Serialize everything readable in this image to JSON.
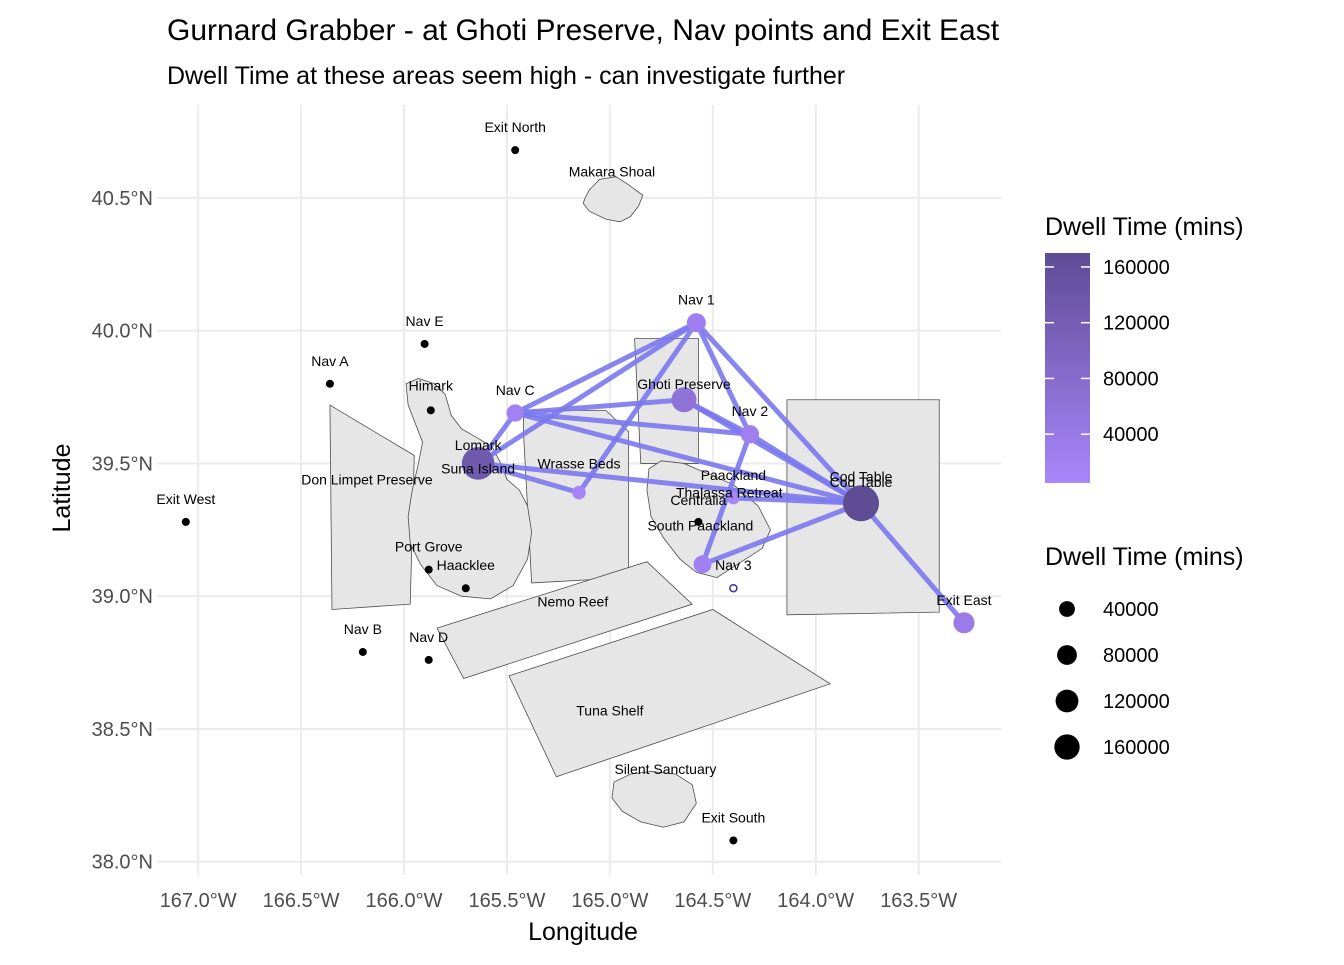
{
  "title": "Gurnard Grabber - at Ghoti Preserve, Nav points and Exit East",
  "subtitle": "Dwell Time at these areas seem high - can investigate further",
  "chart_data": {
    "type": "map",
    "xlabel": "Longitude",
    "ylabel": "Latitude",
    "xlim": [
      -167.2,
      -163.1
    ],
    "ylim": [
      37.95,
      40.85
    ],
    "x_ticks": [
      -167.0,
      -166.5,
      -166.0,
      -165.5,
      -165.0,
      -164.5,
      -164.0,
      -163.5
    ],
    "x_tick_labels": [
      "167.0°W",
      "166.5°W",
      "166.0°W",
      "165.5°W",
      "165.0°W",
      "164.5°W",
      "164.0°W",
      "163.5°W"
    ],
    "y_ticks": [
      38.0,
      38.5,
      39.0,
      39.5,
      40.0,
      40.5
    ],
    "y_tick_labels": [
      "38.0°N",
      "38.5°N",
      "39.0°N",
      "39.5°N",
      "40.0°N",
      "40.5°N"
    ],
    "grid": true,
    "regions": [
      {
        "name": "Don Limpet Preserve",
        "label": [
          -166.18,
          39.44
        ],
        "coords": [
          [
            -166.36,
            39.72
          ],
          [
            -165.95,
            39.53
          ],
          [
            -165.97,
            38.97
          ],
          [
            -166.35,
            38.95
          ]
        ]
      },
      {
        "name": "Wrasse Beds",
        "label": [
          -165.15,
          39.5
        ],
        "coords": [
          [
            -165.42,
            39.7
          ],
          [
            -165.02,
            39.7
          ],
          [
            -164.91,
            39.62
          ],
          [
            -164.91,
            39.07
          ],
          [
            -165.38,
            39.05
          ],
          [
            -165.42,
            39.62
          ]
        ]
      },
      {
        "name": "Ghoti Preserve",
        "label": [
          -164.64,
          39.8
        ],
        "coords": [
          [
            -164.88,
            39.97
          ],
          [
            -164.57,
            39.97
          ],
          [
            -164.57,
            39.5
          ],
          [
            -164.85,
            39.5
          ]
        ]
      },
      {
        "name": "Cod Table",
        "label": [
          -163.78,
          39.43
        ],
        "coords": [
          [
            -164.14,
            39.74
          ],
          [
            -163.4,
            39.74
          ],
          [
            -163.4,
            38.94
          ],
          [
            -164.14,
            38.93
          ]
        ]
      },
      {
        "name": "Nemo Reef",
        "label": [
          -165.18,
          38.98
        ],
        "coords": [
          [
            -165.84,
            38.88
          ],
          [
            -164.82,
            39.13
          ],
          [
            -164.6,
            38.97
          ],
          [
            -165.71,
            38.69
          ]
        ]
      },
      {
        "name": "Tuna Shelf",
        "label": [
          -165.0,
          38.57
        ],
        "coords": [
          [
            -165.49,
            38.7
          ],
          [
            -164.5,
            38.95
          ],
          [
            -163.93,
            38.67
          ],
          [
            -165.26,
            38.32
          ]
        ]
      }
    ],
    "islands": [
      {
        "name": "Makara Shoal",
        "label": [
          -164.99,
          40.6
        ],
        "coords": [
          [
            -165.12,
            40.5
          ],
          [
            -165.1,
            40.53
          ],
          [
            -165.05,
            40.57
          ],
          [
            -164.97,
            40.58
          ],
          [
            -164.91,
            40.55
          ],
          [
            -164.84,
            40.51
          ],
          [
            -164.86,
            40.47
          ],
          [
            -164.9,
            40.43
          ],
          [
            -164.95,
            40.41
          ],
          [
            -165.02,
            40.42
          ],
          [
            -165.1,
            40.45
          ],
          [
            -165.13,
            40.48
          ]
        ]
      },
      {
        "name": "Lomark",
        "label": [
          -165.64,
          39.57
        ],
        "coords": [
          [
            -165.99,
            39.8
          ],
          [
            -165.93,
            39.82
          ],
          [
            -165.85,
            39.8
          ],
          [
            -165.8,
            39.76
          ],
          [
            -165.77,
            39.68
          ],
          [
            -165.72,
            39.63
          ],
          [
            -165.63,
            39.59
          ],
          [
            -165.57,
            39.56
          ],
          [
            -165.53,
            39.5
          ],
          [
            -165.5,
            39.44
          ],
          [
            -165.44,
            39.4
          ],
          [
            -165.4,
            39.34
          ],
          [
            -165.38,
            39.24
          ],
          [
            -165.4,
            39.14
          ],
          [
            -165.47,
            39.04
          ],
          [
            -165.58,
            38.99
          ],
          [
            -165.72,
            39.0
          ],
          [
            -165.84,
            39.04
          ],
          [
            -165.92,
            39.12
          ],
          [
            -165.97,
            39.2
          ],
          [
            -165.98,
            39.3
          ],
          [
            -165.96,
            39.4
          ],
          [
            -165.93,
            39.5
          ],
          [
            -165.91,
            39.58
          ],
          [
            -165.95,
            39.66
          ],
          [
            -165.98,
            39.72
          ]
        ]
      },
      {
        "name": "Thalassa Retreat",
        "label": [
          -164.42,
          39.39
        ],
        "coords": [
          [
            -164.81,
            39.48
          ],
          [
            -164.75,
            39.51
          ],
          [
            -164.64,
            39.5
          ],
          [
            -164.52,
            39.46
          ],
          [
            -164.4,
            39.42
          ],
          [
            -164.28,
            39.34
          ],
          [
            -164.22,
            39.25
          ],
          [
            -164.26,
            39.18
          ],
          [
            -164.38,
            39.12
          ],
          [
            -164.48,
            39.07
          ],
          [
            -164.58,
            39.09
          ],
          [
            -164.66,
            39.14
          ],
          [
            -164.74,
            39.22
          ],
          [
            -164.8,
            39.3
          ],
          [
            -164.82,
            39.4
          ]
        ]
      },
      {
        "name": "Silent Sanctuary",
        "label": [
          -164.73,
          38.35
        ],
        "coords": [
          [
            -164.98,
            38.3
          ],
          [
            -164.9,
            38.33
          ],
          [
            -164.8,
            38.34
          ],
          [
            -164.68,
            38.33
          ],
          [
            -164.6,
            38.29
          ],
          [
            -164.58,
            38.22
          ],
          [
            -164.64,
            38.15
          ],
          [
            -164.74,
            38.13
          ],
          [
            -164.85,
            38.15
          ],
          [
            -164.94,
            38.19
          ],
          [
            -164.99,
            38.24
          ]
        ]
      }
    ],
    "points": [
      {
        "name": "Exit North",
        "lon": -165.46,
        "lat": 40.68
      },
      {
        "name": "Exit West",
        "lon": -167.06,
        "lat": 39.28
      },
      {
        "name": "Exit South",
        "lon": -164.4,
        "lat": 38.08
      },
      {
        "name": "Nav A",
        "lon": -166.36,
        "lat": 39.8
      },
      {
        "name": "Nav B",
        "lon": -166.2,
        "lat": 38.79
      },
      {
        "name": "Nav D",
        "lon": -165.88,
        "lat": 38.76
      },
      {
        "name": "Nav E",
        "lon": -165.9,
        "lat": 39.95
      },
      {
        "name": "Himark",
        "lon": -165.87,
        "lat": 39.7
      },
      {
        "name": "Port Grove",
        "lon": -165.88,
        "lat": 39.1
      },
      {
        "name": "Haacklee",
        "lon": -165.7,
        "lat": 39.03
      },
      {
        "name": "Centralia",
        "lon": -164.57,
        "lat": 39.28
      },
      {
        "name": "Suna Island",
        "lon": -165.64,
        "lat": 39.5
      },
      {
        "name": "South Paackland",
        "lon": -164.57,
        "lat": 39.18
      },
      {
        "name": "Nav 3",
        "lon": -164.4,
        "lat": 39.03
      }
    ],
    "dwell": [
      {
        "name": "Nav 1",
        "lon": -164.58,
        "lat": 40.03,
        "value": 25000
      },
      {
        "name": "Nav C",
        "lon": -165.46,
        "lat": 39.69,
        "value": 18000
      },
      {
        "name": "Ghoti Preserve",
        "lon": -164.64,
        "lat": 39.74,
        "value": 60000
      },
      {
        "name": "Nav 2",
        "lon": -164.32,
        "lat": 39.61,
        "value": 22000
      },
      {
        "name": "Suna Island",
        "lon": -165.64,
        "lat": 39.5,
        "value": 130000
      },
      {
        "name": "Wrasse Beds",
        "lon": -165.15,
        "lat": 39.39,
        "value": 8000
      },
      {
        "name": "Paackland",
        "lon": -164.4,
        "lat": 39.37,
        "value": 7000
      },
      {
        "name": "Cod Table",
        "lon": -163.78,
        "lat": 39.35,
        "value": 170000
      },
      {
        "name": "South Paackland",
        "lon": -164.55,
        "lat": 39.12,
        "value": 20000
      },
      {
        "name": "Exit East",
        "lon": -163.28,
        "lat": 38.9,
        "value": 35000
      }
    ],
    "paths": [
      [
        "Suna Island",
        "Nav 1"
      ],
      [
        "Suna Island",
        "Nav C"
      ],
      [
        "Suna Island",
        "Wrasse Beds"
      ],
      [
        "Suna Island",
        "Cod Table"
      ],
      [
        "Nav C",
        "Nav 1"
      ],
      [
        "Nav C",
        "Ghoti Preserve"
      ],
      [
        "Nav C",
        "Nav 2"
      ],
      [
        "Nav C",
        "Cod Table"
      ],
      [
        "Wrasse Beds",
        "Nav 1"
      ],
      [
        "Nav 1",
        "Nav 2"
      ],
      [
        "Nav 1",
        "Cod Table"
      ],
      [
        "Ghoti Preserve",
        "Nav 2"
      ],
      [
        "Ghoti Preserve",
        "Cod Table"
      ],
      [
        "Nav 2",
        "Cod Table"
      ],
      [
        "Nav 2",
        "South Paackland"
      ],
      [
        "Paackland",
        "Cod Table"
      ],
      [
        "South Paackland",
        "Cod Table"
      ],
      [
        "Nav 3",
        "Cod Table"
      ],
      [
        "Cod Table",
        "Exit East"
      ]
    ],
    "legend_color": {
      "title": "Dwell Time (mins)",
      "breaks": [
        40000,
        80000,
        120000,
        160000
      ],
      "labels": [
        "40000",
        "80000",
        "120000",
        "160000"
      ],
      "low": "#a886fb",
      "high": "#5e4c95",
      "limits": [
        5000,
        170000
      ]
    },
    "legend_size": {
      "title": "Dwell Time (mins)",
      "breaks": [
        40000,
        80000,
        120000,
        160000
      ],
      "labels": [
        "40000",
        "80000",
        "120000",
        "160000"
      ],
      "limits": [
        5000,
        170000
      ]
    },
    "line_color": "#7b78f0"
  }
}
